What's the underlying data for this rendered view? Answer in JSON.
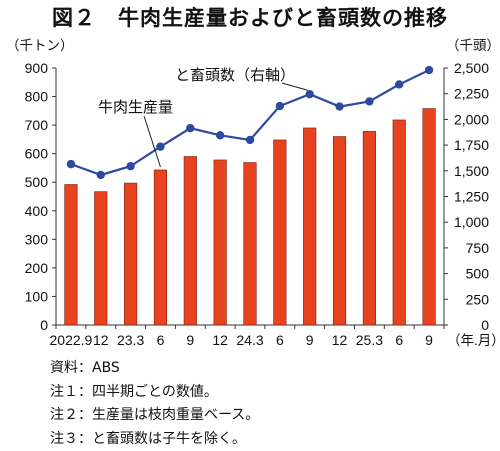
{
  "chart_data": {
    "type": "bar+line",
    "title": "図２　牛肉生産量およびと畜頭数の推移",
    "left_unit": "（千トン）",
    "right_unit": "（千頭）",
    "x_unit": "（年.月）",
    "categories": [
      "2022.9",
      "12",
      "23.3",
      "6",
      "9",
      "12",
      "24.3",
      "6",
      "9",
      "12",
      "25.3",
      "6",
      "9"
    ],
    "y_left": {
      "min": 0,
      "max": 900,
      "ticks": [
        0,
        100,
        200,
        300,
        400,
        500,
        600,
        700,
        800,
        900
      ]
    },
    "y_right": {
      "min": 0,
      "max": 2500,
      "ticks": [
        "0",
        "250",
        "500",
        "750",
        "1,000",
        "1,250",
        "1,500",
        "1,750",
        "2,000",
        "2,250",
        "2,500"
      ]
    },
    "series": [
      {
        "name": "牛肉生産量",
        "type": "bar",
        "axis": "left",
        "color": "#e8431f",
        "values": [
          492,
          467,
          497,
          543,
          590,
          578,
          569,
          648,
          690,
          660,
          678,
          718,
          758
        ]
      },
      {
        "name": "と畜頭数（右軸）",
        "type": "line",
        "axis": "right",
        "color": "#2e4a9e",
        "values": [
          1565,
          1460,
          1545,
          1735,
          1915,
          1845,
          1800,
          2130,
          2245,
          2125,
          2175,
          2340,
          2480
        ]
      }
    ],
    "grid": false
  },
  "notes": [
    "資料：ABS",
    "注１：四半期ごとの数値。",
    "注２：生産量は枝肉重量ベース。",
    "注３：と畜頭数は子牛を除く。"
  ]
}
